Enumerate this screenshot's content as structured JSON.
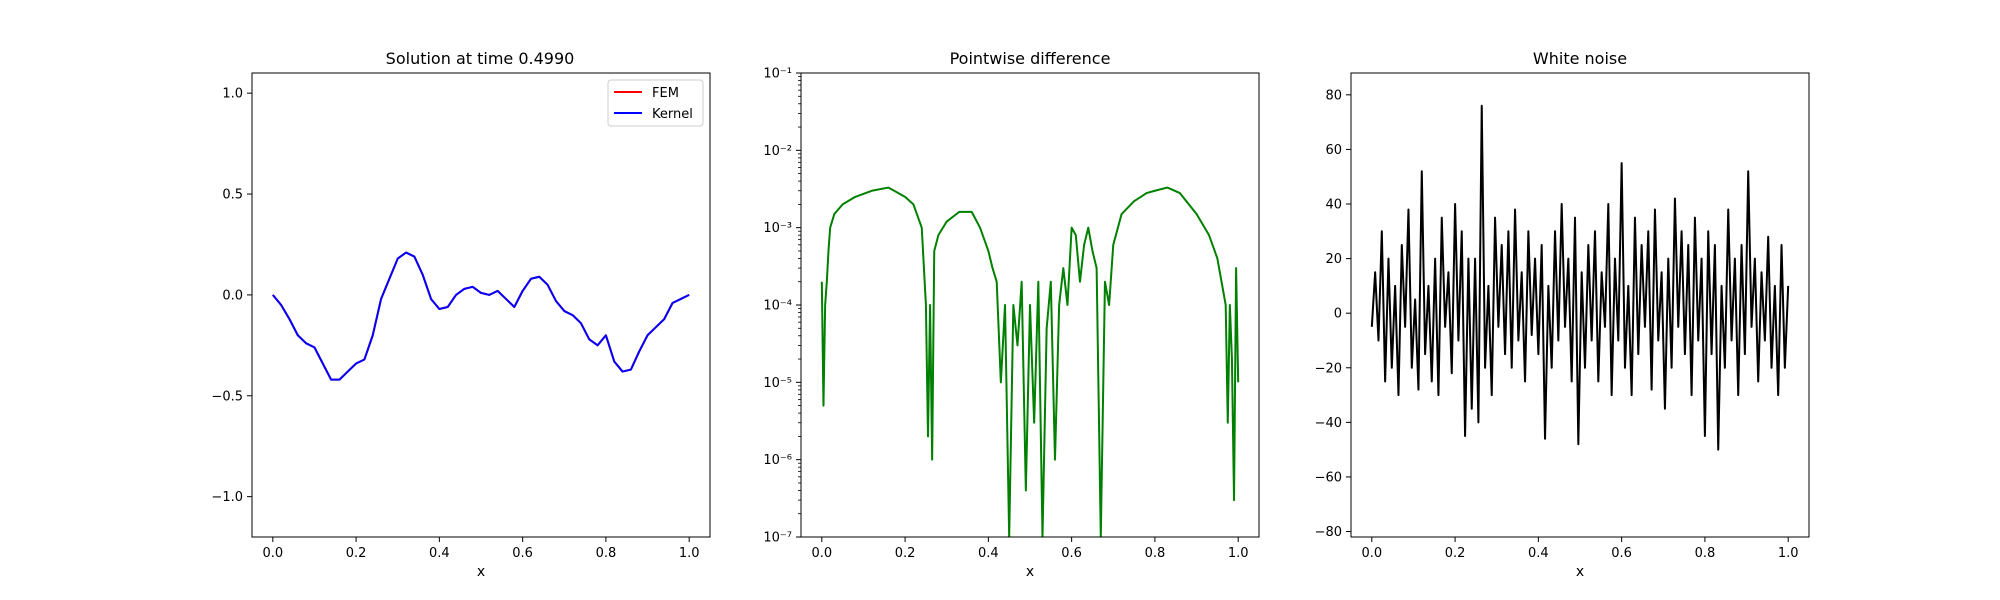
{
  "chart_data": [
    {
      "type": "line",
      "title": "Solution at time 0.4990",
      "xlabel": "x",
      "ylabel": "",
      "xlim": [
        -0.05,
        1.05
      ],
      "ylim": [
        -1.2,
        1.1
      ],
      "xticks": [
        0.0,
        0.2,
        0.4,
        0.6,
        0.8,
        1.0
      ],
      "xtick_labels": [
        "0.0",
        "0.2",
        "0.4",
        "0.6",
        "0.8",
        "1.0"
      ],
      "yticks": [
        -1.0,
        -0.5,
        0.0,
        0.5,
        1.0
      ],
      "ytick_labels": [
        "−1.0",
        "−0.5",
        "0.0",
        "0.5",
        "1.0"
      ],
      "legend": {
        "position": "upper right"
      },
      "series": [
        {
          "name": "FEM",
          "color": "#ff0000",
          "x": [
            0.0,
            0.02,
            0.04,
            0.06,
            0.08,
            0.1,
            0.12,
            0.14,
            0.16,
            0.18,
            0.2,
            0.22,
            0.24,
            0.26,
            0.28,
            0.3,
            0.32,
            0.34,
            0.36,
            0.38,
            0.4,
            0.42,
            0.44,
            0.46,
            0.48,
            0.5,
            0.52,
            0.54,
            0.56,
            0.58,
            0.6,
            0.62,
            0.64,
            0.66,
            0.68,
            0.7,
            0.72,
            0.74,
            0.76,
            0.78,
            0.8,
            0.82,
            0.84,
            0.86,
            0.88,
            0.9,
            0.92,
            0.94,
            0.96,
            0.98,
            1.0
          ],
          "y": [
            0.0,
            -0.05,
            -0.12,
            -0.2,
            -0.24,
            -0.26,
            -0.34,
            -0.42,
            -0.42,
            -0.38,
            -0.34,
            -0.32,
            -0.2,
            -0.02,
            0.08,
            0.18,
            0.21,
            0.19,
            0.1,
            -0.02,
            -0.07,
            -0.06,
            0.0,
            0.03,
            0.04,
            0.01,
            0.0,
            0.02,
            -0.02,
            -0.06,
            0.02,
            0.08,
            0.09,
            0.05,
            -0.03,
            -0.08,
            -0.1,
            -0.14,
            -0.22,
            -0.25,
            -0.2,
            -0.33,
            -0.38,
            -0.37,
            -0.28,
            -0.2,
            -0.16,
            -0.12,
            -0.04,
            -0.02,
            0.0
          ]
        },
        {
          "name": "Kernel",
          "color": "#0000ff",
          "x": [
            0.0,
            0.02,
            0.04,
            0.06,
            0.08,
            0.1,
            0.12,
            0.14,
            0.16,
            0.18,
            0.2,
            0.22,
            0.24,
            0.26,
            0.28,
            0.3,
            0.32,
            0.34,
            0.36,
            0.38,
            0.4,
            0.42,
            0.44,
            0.46,
            0.48,
            0.5,
            0.52,
            0.54,
            0.56,
            0.58,
            0.6,
            0.62,
            0.64,
            0.66,
            0.68,
            0.7,
            0.72,
            0.74,
            0.76,
            0.78,
            0.8,
            0.82,
            0.84,
            0.86,
            0.88,
            0.9,
            0.92,
            0.94,
            0.96,
            0.98,
            1.0
          ],
          "y": [
            0.0,
            -0.05,
            -0.12,
            -0.2,
            -0.24,
            -0.26,
            -0.34,
            -0.42,
            -0.42,
            -0.38,
            -0.34,
            -0.32,
            -0.2,
            -0.02,
            0.08,
            0.18,
            0.21,
            0.19,
            0.1,
            -0.02,
            -0.07,
            -0.06,
            0.0,
            0.03,
            0.04,
            0.01,
            0.0,
            0.02,
            -0.02,
            -0.06,
            0.02,
            0.08,
            0.09,
            0.05,
            -0.03,
            -0.08,
            -0.1,
            -0.14,
            -0.22,
            -0.25,
            -0.2,
            -0.33,
            -0.38,
            -0.37,
            -0.28,
            -0.2,
            -0.16,
            -0.12,
            -0.04,
            -0.02,
            0.0
          ]
        }
      ]
    },
    {
      "type": "line",
      "title": "Pointwise difference",
      "xlabel": "x",
      "ylabel": "",
      "yscale": "log",
      "xlim": [
        -0.05,
        1.05
      ],
      "ylim": [
        1e-07,
        0.1
      ],
      "xticks": [
        0.0,
        0.2,
        0.4,
        0.6,
        0.8,
        1.0
      ],
      "xtick_labels": [
        "0.0",
        "0.2",
        "0.4",
        "0.6",
        "0.8",
        "1.0"
      ],
      "yticks": [
        1e-07,
        1e-06,
        1e-05,
        0.0001,
        0.001,
        0.01,
        0.1
      ],
      "ytick_labels": [
        "10⁻⁷",
        "10⁻⁶",
        "10⁻⁵",
        "10⁻⁴",
        "10⁻³",
        "10⁻²",
        "10⁻¹"
      ],
      "series": [
        {
          "color": "#008000",
          "x": [
            0.0,
            0.004,
            0.008,
            0.012,
            0.016,
            0.02,
            0.03,
            0.05,
            0.08,
            0.12,
            0.16,
            0.2,
            0.22,
            0.24,
            0.25,
            0.255,
            0.26,
            0.265,
            0.27,
            0.28,
            0.3,
            0.33,
            0.36,
            0.38,
            0.4,
            0.41,
            0.42,
            0.43,
            0.44,
            0.45,
            0.46,
            0.47,
            0.48,
            0.49,
            0.5,
            0.51,
            0.52,
            0.53,
            0.54,
            0.55,
            0.56,
            0.57,
            0.58,
            0.59,
            0.6,
            0.61,
            0.62,
            0.63,
            0.64,
            0.65,
            0.66,
            0.67,
            0.68,
            0.69,
            0.7,
            0.72,
            0.75,
            0.78,
            0.8,
            0.83,
            0.86,
            0.9,
            0.93,
            0.95,
            0.96,
            0.97,
            0.975,
            0.98,
            0.985,
            0.99,
            0.995,
            1.0
          ],
          "y": [
            0.0002,
            5e-06,
            0.0001,
            0.0002,
            0.0005,
            0.001,
            0.0015,
            0.002,
            0.0025,
            0.003,
            0.0033,
            0.0025,
            0.002,
            0.001,
            0.0001,
            2e-06,
            0.0001,
            1e-06,
            0.0005,
            0.0008,
            0.0012,
            0.0016,
            0.0016,
            0.001,
            0.0005,
            0.0003,
            0.0002,
            1e-05,
            0.0001,
            1e-07,
            0.0001,
            3e-05,
            0.0002,
            4e-07,
            0.0001,
            3e-06,
            0.0002,
            1e-07,
            5e-05,
            0.0002,
            1e-06,
            0.0001,
            0.0003,
            0.0001,
            0.001,
            0.0008,
            0.0002,
            0.0006,
            0.001,
            0.0005,
            0.0003,
            1e-07,
            0.0002,
            0.0001,
            0.0006,
            0.0015,
            0.0022,
            0.0028,
            0.003,
            0.0033,
            0.0028,
            0.0015,
            0.0008,
            0.0004,
            0.0002,
            0.0001,
            3e-06,
            0.0001,
            2e-05,
            3e-07,
            0.0003,
            1e-05
          ]
        }
      ]
    },
    {
      "type": "line",
      "title": "White noise",
      "xlabel": "x",
      "ylabel": "",
      "xlim": [
        -0.05,
        1.05
      ],
      "ylim": [
        -82,
        88
      ],
      "xticks": [
        0.0,
        0.2,
        0.4,
        0.6,
        0.8,
        1.0
      ],
      "xtick_labels": [
        "0.0",
        "0.2",
        "0.4",
        "0.6",
        "0.8",
        "1.0"
      ],
      "yticks": [
        -80,
        -60,
        -40,
        -20,
        0,
        20,
        40,
        60,
        80
      ],
      "ytick_labels": [
        "−80",
        "−60",
        "−40",
        "−20",
        "0",
        "20",
        "40",
        "60",
        "80"
      ],
      "series": [
        {
          "color": "#000000",
          "x": [
            0.0,
            0.008,
            0.016,
            0.024,
            0.032,
            0.04,
            0.048,
            0.056,
            0.064,
            0.072,
            0.08,
            0.088,
            0.096,
            0.104,
            0.112,
            0.12,
            0.128,
            0.136,
            0.144,
            0.152,
            0.16,
            0.168,
            0.176,
            0.184,
            0.192,
            0.2,
            0.208,
            0.216,
            0.224,
            0.232,
            0.24,
            0.248,
            0.256,
            0.264,
            0.272,
            0.28,
            0.288,
            0.296,
            0.304,
            0.312,
            0.32,
            0.328,
            0.336,
            0.344,
            0.352,
            0.36,
            0.368,
            0.376,
            0.384,
            0.392,
            0.4,
            0.408,
            0.416,
            0.424,
            0.432,
            0.44,
            0.448,
            0.456,
            0.464,
            0.472,
            0.48,
            0.488,
            0.496,
            0.504,
            0.512,
            0.52,
            0.528,
            0.536,
            0.544,
            0.552,
            0.56,
            0.568,
            0.576,
            0.584,
            0.592,
            0.6,
            0.608,
            0.616,
            0.624,
            0.632,
            0.64,
            0.648,
            0.656,
            0.664,
            0.672,
            0.68,
            0.688,
            0.696,
            0.704,
            0.712,
            0.72,
            0.728,
            0.736,
            0.744,
            0.752,
            0.76,
            0.768,
            0.776,
            0.784,
            0.792,
            0.8,
            0.808,
            0.816,
            0.824,
            0.832,
            0.84,
            0.848,
            0.856,
            0.864,
            0.872,
            0.88,
            0.888,
            0.896,
            0.904,
            0.912,
            0.92,
            0.928,
            0.936,
            0.944,
            0.952,
            0.96,
            0.968,
            0.976,
            0.984,
            0.992,
            1.0
          ],
          "y": [
            -5,
            15,
            -10,
            30,
            -25,
            20,
            -20,
            10,
            -30,
            25,
            -5,
            38,
            -20,
            5,
            -28,
            52,
            -15,
            10,
            -25,
            20,
            -30,
            35,
            -5,
            15,
            -22,
            40,
            -10,
            30,
            -45,
            20,
            -35,
            20,
            -40,
            76,
            -20,
            10,
            -30,
            35,
            -5,
            25,
            -15,
            30,
            -20,
            38,
            -10,
            15,
            -25,
            30,
            -8,
            20,
            -15,
            25,
            -46,
            10,
            -20,
            30,
            -10,
            40,
            -5,
            20,
            -25,
            35,
            -48,
            15,
            -20,
            25,
            -10,
            30,
            -25,
            15,
            -5,
            40,
            -30,
            20,
            -10,
            55,
            -20,
            10,
            -30,
            35,
            -15,
            25,
            -5,
            30,
            -28,
            38,
            -10,
            15,
            -35,
            20,
            -20,
            42,
            -5,
            30,
            -15,
            25,
            -30,
            35,
            -10,
            20,
            -45,
            30,
            -15,
            25,
            -50,
            10,
            -20,
            38,
            -10,
            20,
            -30,
            25,
            -15,
            52,
            -5,
            20,
            -25,
            15,
            -10,
            28,
            -20,
            10,
            -30,
            25,
            -20,
            10
          ]
        }
      ]
    }
  ]
}
